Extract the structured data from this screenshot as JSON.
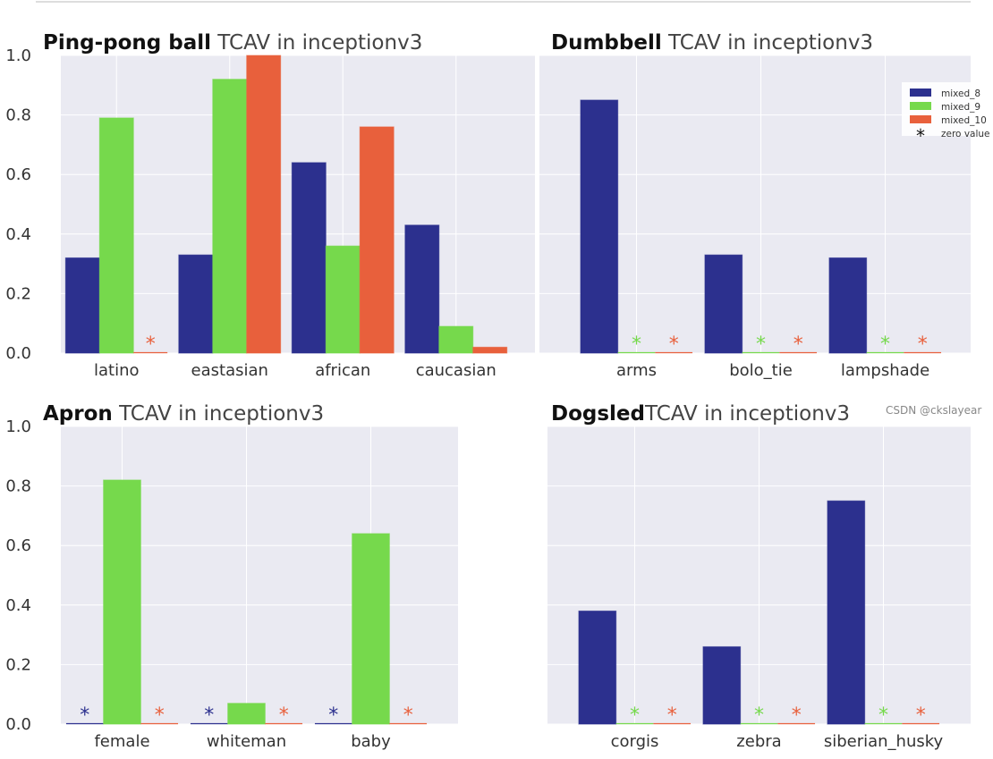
{
  "legend": {
    "items": [
      {
        "label": "mixed_8",
        "color": "#2c308e"
      },
      {
        "label": "mixed_9",
        "color": "#76d94c"
      },
      {
        "label": "mixed_10",
        "color": "#e8603c"
      },
      {
        "label": "zero value",
        "marker": "*"
      }
    ]
  },
  "watermark": "CSDN @ckslayear",
  "chart_data": [
    {
      "type": "bar",
      "title_bold": "Ping-pong ball",
      "title_rest": " TCAV in inceptionv3",
      "categories": [
        "latino",
        "eastasian",
        "african",
        "caucasian"
      ],
      "series": [
        {
          "name": "mixed_8",
          "values": [
            0.32,
            0.33,
            0.64,
            0.43
          ]
        },
        {
          "name": "mixed_9",
          "values": [
            0.79,
            0.92,
            0.36,
            0.09
          ]
        },
        {
          "name": "mixed_10",
          "values": [
            0,
            1.0,
            0.76,
            0.02
          ]
        }
      ],
      "ylim": [
        0,
        1.0
      ],
      "yticks": [
        "0.0",
        "0.2",
        "0.4",
        "0.6",
        "0.8",
        "1.0"
      ],
      "grid": true
    },
    {
      "type": "bar",
      "title_bold": "Dumbbell",
      "title_rest": " TCAV in inceptionv3",
      "categories": [
        "arms",
        "bolo_tie",
        "lampshade"
      ],
      "series": [
        {
          "name": "mixed_8",
          "values": [
            0.85,
            0.33,
            0.32
          ]
        },
        {
          "name": "mixed_9",
          "values": [
            0,
            0,
            0
          ]
        },
        {
          "name": "mixed_10",
          "values": [
            0,
            0,
            0
          ]
        }
      ],
      "ylim": [
        0,
        1.0
      ],
      "grid": true,
      "legend": "top-right"
    },
    {
      "type": "bar",
      "title_bold": "Apron",
      "title_rest": " TCAV in inceptionv3",
      "categories": [
        "female",
        "whiteman",
        "baby"
      ],
      "series": [
        {
          "name": "mixed_8",
          "values": [
            0,
            0,
            0
          ]
        },
        {
          "name": "mixed_9",
          "values": [
            0.82,
            0.07,
            0.64
          ]
        },
        {
          "name": "mixed_10",
          "values": [
            0,
            0,
            0
          ]
        }
      ],
      "ylim": [
        0,
        1.0
      ],
      "yticks": [
        "0.0",
        "0.2",
        "0.4",
        "0.6",
        "0.8",
        "1.0"
      ],
      "grid": true
    },
    {
      "type": "bar",
      "title_bold": "Dogsled",
      "title_rest": "TCAV in inceptionv3",
      "categories": [
        "corgis",
        "zebra",
        "siberian_husky"
      ],
      "series": [
        {
          "name": "mixed_8",
          "values": [
            0.38,
            0.26,
            0.75
          ]
        },
        {
          "name": "mixed_9",
          "values": [
            0,
            0,
            0
          ]
        },
        {
          "name": "mixed_10",
          "values": [
            0,
            0,
            0
          ]
        }
      ],
      "ylim": [
        0,
        1.0
      ],
      "grid": true
    }
  ]
}
